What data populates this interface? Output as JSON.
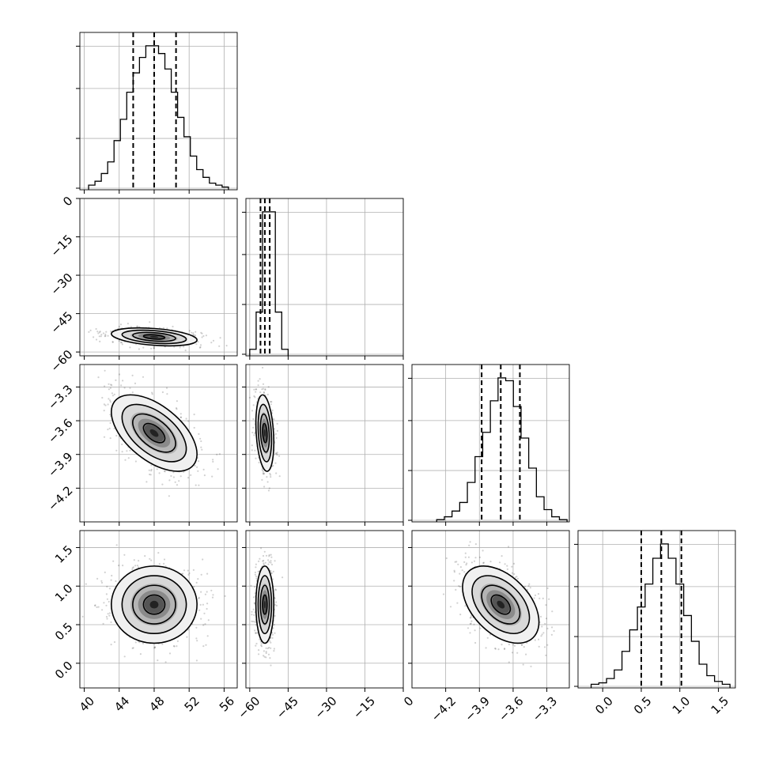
{
  "chart_data": {
    "type": "corner",
    "grid": true,
    "parameters": [
      {
        "range": [
          39.5,
          57.5
        ],
        "ticks": [
          40,
          44,
          48,
          52,
          56
        ],
        "tick_labels": [
          "40",
          "44",
          "48",
          "52",
          "56"
        ],
        "quantiles": [
          45.6,
          48.0,
          50.5
        ],
        "hist_edges_range": [
          40.5,
          56.5
        ],
        "hist_values": [
          2,
          4,
          8,
          14,
          25,
          36,
          50,
          60,
          68,
          74,
          74,
          70,
          62,
          50,
          37,
          27,
          17,
          10,
          6,
          3,
          2,
          1
        ]
      },
      {
        "range": [
          -61.5,
          0
        ],
        "ticks": [
          -60,
          -45,
          -30,
          -15,
          0
        ],
        "tick_labels": [
          "−60",
          "−45",
          "−30",
          "−15",
          "0"
        ],
        "quantiles": [
          -55.8,
          -54.1,
          -52.2
        ],
        "hist_edges_range": [
          -60.0,
          -45.0
        ],
        "hist_values": [
          4,
          30,
          100,
          100,
          30,
          4
        ]
      },
      {
        "range": [
          -4.5,
          -3.1
        ],
        "ticks": [
          -4.2,
          -3.9,
          -3.6,
          -3.3
        ],
        "tick_labels": [
          "−4.2",
          "−3.9",
          "−3.6",
          "−3.3"
        ],
        "quantiles": [
          -3.88,
          -3.71,
          -3.54
        ],
        "hist_edges_range": [
          -4.28,
          -3.12
        ],
        "hist_values": [
          1,
          3,
          7,
          13,
          27,
          45,
          62,
          84,
          100,
          98,
          80,
          58,
          37,
          17,
          8,
          3,
          1
        ]
      },
      {
        "range": [
          -0.32,
          1.72
        ],
        "ticks": [
          0.0,
          0.5,
          1.0,
          1.5
        ],
        "tick_labels": [
          "0.0",
          "0.5",
          "1.0",
          "1.5"
        ],
        "quantiles": [
          0.5,
          0.76,
          1.02
        ],
        "hist_edges_range": [
          -0.15,
          1.65
        ],
        "hist_values": [
          2,
          3,
          6,
          12,
          25,
          40,
          56,
          72,
          90,
          100,
          90,
          72,
          50,
          32,
          16,
          8,
          4,
          2
        ]
      }
    ],
    "distributions": [
      {
        "means": [
          48.0,
          -54.1
        ],
        "sds": [
          2.45,
          1.75
        ],
        "rho": -0.35
      },
      {
        "means": [
          48.0,
          -3.71
        ],
        "sds": [
          2.45,
          0.17
        ],
        "rho": -0.55
      },
      {
        "means": [
          -54.1,
          -3.71
        ],
        "sds": [
          1.75,
          0.17
        ],
        "rho": -0.25
      },
      {
        "means": [
          48.0,
          0.76
        ],
        "sds": [
          2.45,
          0.25
        ],
        "rho": 0.0
      },
      {
        "means": [
          -54.1,
          0.76
        ],
        "sds": [
          1.75,
          0.25
        ],
        "rho": 0.0
      },
      {
        "means": [
          -3.71,
          0.76
        ],
        "sds": [
          0.17,
          0.25
        ],
        "rho": -0.45
      }
    ],
    "x_labels_rotated": true,
    "y_labels_rotated": true
  }
}
